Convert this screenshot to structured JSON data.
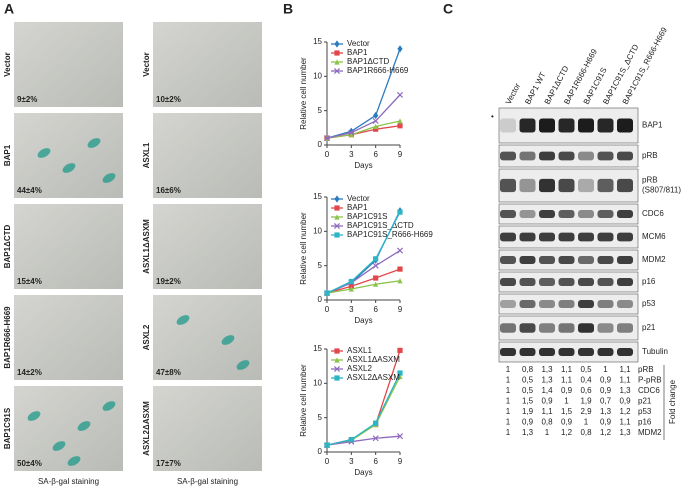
{
  "panel_a": {
    "label": "A",
    "columns": [
      {
        "rows": [
          {
            "name": "Vector",
            "value": "9±2%"
          },
          {
            "name": "BAP1",
            "value": "44±4%"
          },
          {
            "name": "BAP1ΔCTD",
            "value": "15±4%"
          },
          {
            "name": "BAP1R666-H669",
            "value": "14±2%"
          },
          {
            "name": "BAP1C91S",
            "value": "50±4%"
          }
        ],
        "footer": "SA-β-gal staining"
      },
      {
        "rows": [
          {
            "name": "Vector",
            "value": "10±2%"
          },
          {
            "name": "ASXL1",
            "value": "16±6%"
          },
          {
            "name": "ASXL1ΔASXM",
            "value": "19±2%"
          },
          {
            "name": "ASXL2",
            "value": "47±8%"
          },
          {
            "name": "ASXL2ΔASXM",
            "value": "17±7%"
          }
        ],
        "footer": "SA-β-gal staining"
      }
    ]
  },
  "panel_b_label": "B",
  "chart_data": [
    {
      "type": "line",
      "x": [
        0,
        3,
        6,
        9
      ],
      "xlim": [
        0,
        9
      ],
      "xticks": [
        0,
        3,
        6,
        9
      ],
      "ylim": [
        0,
        15
      ],
      "yticks": [
        0,
        5,
        10,
        15
      ],
      "x_label": "Days",
      "y_label": "Relative cell number",
      "series": [
        {
          "name": "Vector",
          "color": "#2b7bc0",
          "marker": "diamond",
          "values": [
            1,
            2,
            4.3,
            14
          ]
        },
        {
          "name": "BAP1",
          "color": "#e2474b",
          "marker": "square",
          "values": [
            1,
            1.5,
            2.3,
            2.8
          ]
        },
        {
          "name": "BAP1ΔCTD",
          "color": "#8cc34a",
          "marker": "triangle",
          "values": [
            1,
            1.5,
            2.7,
            3.5
          ]
        },
        {
          "name": "BAP1R666-H669",
          "color": "#8e6bbf",
          "marker": "x",
          "values": [
            1,
            1.8,
            3.5,
            7.3
          ]
        }
      ]
    },
    {
      "type": "line",
      "x": [
        0,
        3,
        6,
        9
      ],
      "xlim": [
        0,
        9
      ],
      "xticks": [
        0,
        3,
        6,
        9
      ],
      "ylim": [
        0,
        15
      ],
      "yticks": [
        0,
        5,
        10,
        15
      ],
      "x_label": "Days",
      "y_label": "Relative cell number",
      "series": [
        {
          "name": "Vector",
          "color": "#2b7bc0",
          "marker": "diamond",
          "values": [
            1,
            2.5,
            5.8,
            13
          ]
        },
        {
          "name": "BAP1",
          "color": "#e2474b",
          "marker": "square",
          "values": [
            1,
            2,
            3.2,
            4.5
          ]
        },
        {
          "name": "BAP1C91S",
          "color": "#8cc34a",
          "marker": "triangle",
          "values": [
            1,
            1.6,
            2.3,
            2.8
          ]
        },
        {
          "name": "BAP1C91S_ΔCTD",
          "color": "#8e6bbf",
          "marker": "x",
          "values": [
            1,
            2.5,
            5,
            7.2
          ]
        },
        {
          "name": "BAP1C91S_R666-H669",
          "color": "#2bb5c5",
          "marker": "square",
          "values": [
            1,
            2.7,
            6,
            12.8
          ]
        }
      ]
    },
    {
      "type": "line",
      "x": [
        0,
        3,
        6,
        9
      ],
      "xlim": [
        0,
        9
      ],
      "xticks": [
        0,
        3,
        6,
        9
      ],
      "ylim": [
        0,
        15
      ],
      "yticks": [
        0,
        5,
        10,
        15
      ],
      "x_label": "Days",
      "y_label": "Relative cell number",
      "series": [
        {
          "name": "ASXL1",
          "color": "#e2474b",
          "marker": "square",
          "values": [
            1,
            1.8,
            4,
            14.8
          ]
        },
        {
          "name": "ASXL1ΔASXM",
          "color": "#8cc34a",
          "marker": "triangle",
          "values": [
            1,
            1.7,
            4,
            11
          ]
        },
        {
          "name": "ASXL2",
          "color": "#8e6bbf",
          "marker": "x",
          "values": [
            1,
            1.5,
            2,
            2.3
          ]
        },
        {
          "name": "ASXL2ΔASXM",
          "color": "#2bb5c5",
          "marker": "square",
          "values": [
            1,
            1.8,
            4.2,
            11.5
          ]
        }
      ]
    }
  ],
  "panel_c": {
    "label": "C",
    "marker": "•",
    "lanes": [
      "Vector",
      "BAP1 WT",
      "BAP1ΔCTD",
      "BAP1R666-H669",
      "BAP1C91S",
      "BAP1C91S_ΔCTD",
      "BAP1C91S_R666-H669"
    ],
    "blots": [
      {
        "name": "BAP1"
      },
      {
        "name": "pRB"
      },
      {
        "name": "pRB",
        "note": "(S807/811)"
      },
      {
        "name": "CDC6"
      },
      {
        "name": "MCM6"
      },
      {
        "name": "MDM2"
      },
      {
        "name": "p16"
      },
      {
        "name": "p53"
      },
      {
        "name": "p21"
      },
      {
        "name": "Tubulin"
      }
    ],
    "quant": {
      "axis_label": "Fold change",
      "rows": [
        {
          "name": "pRB",
          "values": [
            "1",
            "0,8",
            "1,3",
            "1,1",
            "0,5",
            "1",
            "1,1"
          ]
        },
        {
          "name": "P-pRB",
          "values": [
            "1",
            "0,5",
            "1,3",
            "1,1",
            "0,4",
            "0,9",
            "1,1"
          ]
        },
        {
          "name": "CDC6",
          "values": [
            "1",
            "0,5",
            "1,4",
            "0,9",
            "0,6",
            "0,9",
            "1,3"
          ]
        },
        {
          "name": "p21",
          "values": [
            "1",
            "1,5",
            "0,9",
            "1",
            "1,9",
            "0,7",
            "0,9"
          ]
        },
        {
          "name": "p53",
          "values": [
            "1",
            "1,9",
            "1,1",
            "1,5",
            "2,9",
            "1,3",
            "1,2"
          ]
        },
        {
          "name": "p16",
          "values": [
            "1",
            "0,9",
            "0,8",
            "0,9",
            "1",
            "0,9",
            "1,1"
          ]
        },
        {
          "name": "MDM2",
          "values": [
            "1",
            "1,3",
            "1",
            "1,2",
            "0,8",
            "1,2",
            "1,3"
          ]
        }
      ]
    }
  }
}
